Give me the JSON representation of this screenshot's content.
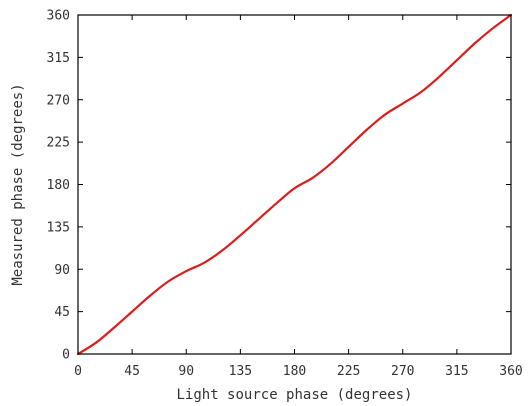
{
  "chart_data": {
    "type": "line",
    "title": "",
    "xlabel": "Light source phase (degrees)",
    "ylabel": "Measured phase (degrees)",
    "xlim": [
      0,
      360
    ],
    "ylim": [
      0,
      360
    ],
    "xticks": [
      0,
      45,
      90,
      135,
      180,
      225,
      270,
      315,
      360
    ],
    "yticks": [
      0,
      45,
      90,
      135,
      180,
      225,
      270,
      315,
      360
    ],
    "xtick_labels": [
      "0",
      "45",
      "90",
      "135",
      "180",
      "225",
      "270",
      "315",
      "360"
    ],
    "ytick_labels": [
      "0",
      "45",
      "90",
      "135",
      "180",
      "225",
      "270",
      "315",
      "360"
    ],
    "grid": false,
    "legend": "none",
    "series": [
      {
        "color": "#dd1c1c",
        "x": [
          0,
          15,
          30,
          45,
          60,
          75,
          90,
          105,
          120,
          135,
          150,
          165,
          180,
          195,
          210,
          225,
          240,
          255,
          270,
          285,
          300,
          315,
          330,
          345,
          360
        ],
        "y": [
          0,
          12,
          28,
          45,
          62,
          77,
          88,
          97,
          110,
          126,
          143,
          160,
          176,
          187,
          202,
          220,
          238,
          254,
          266,
          278,
          294,
          312,
          330,
          346,
          360
        ]
      }
    ]
  }
}
